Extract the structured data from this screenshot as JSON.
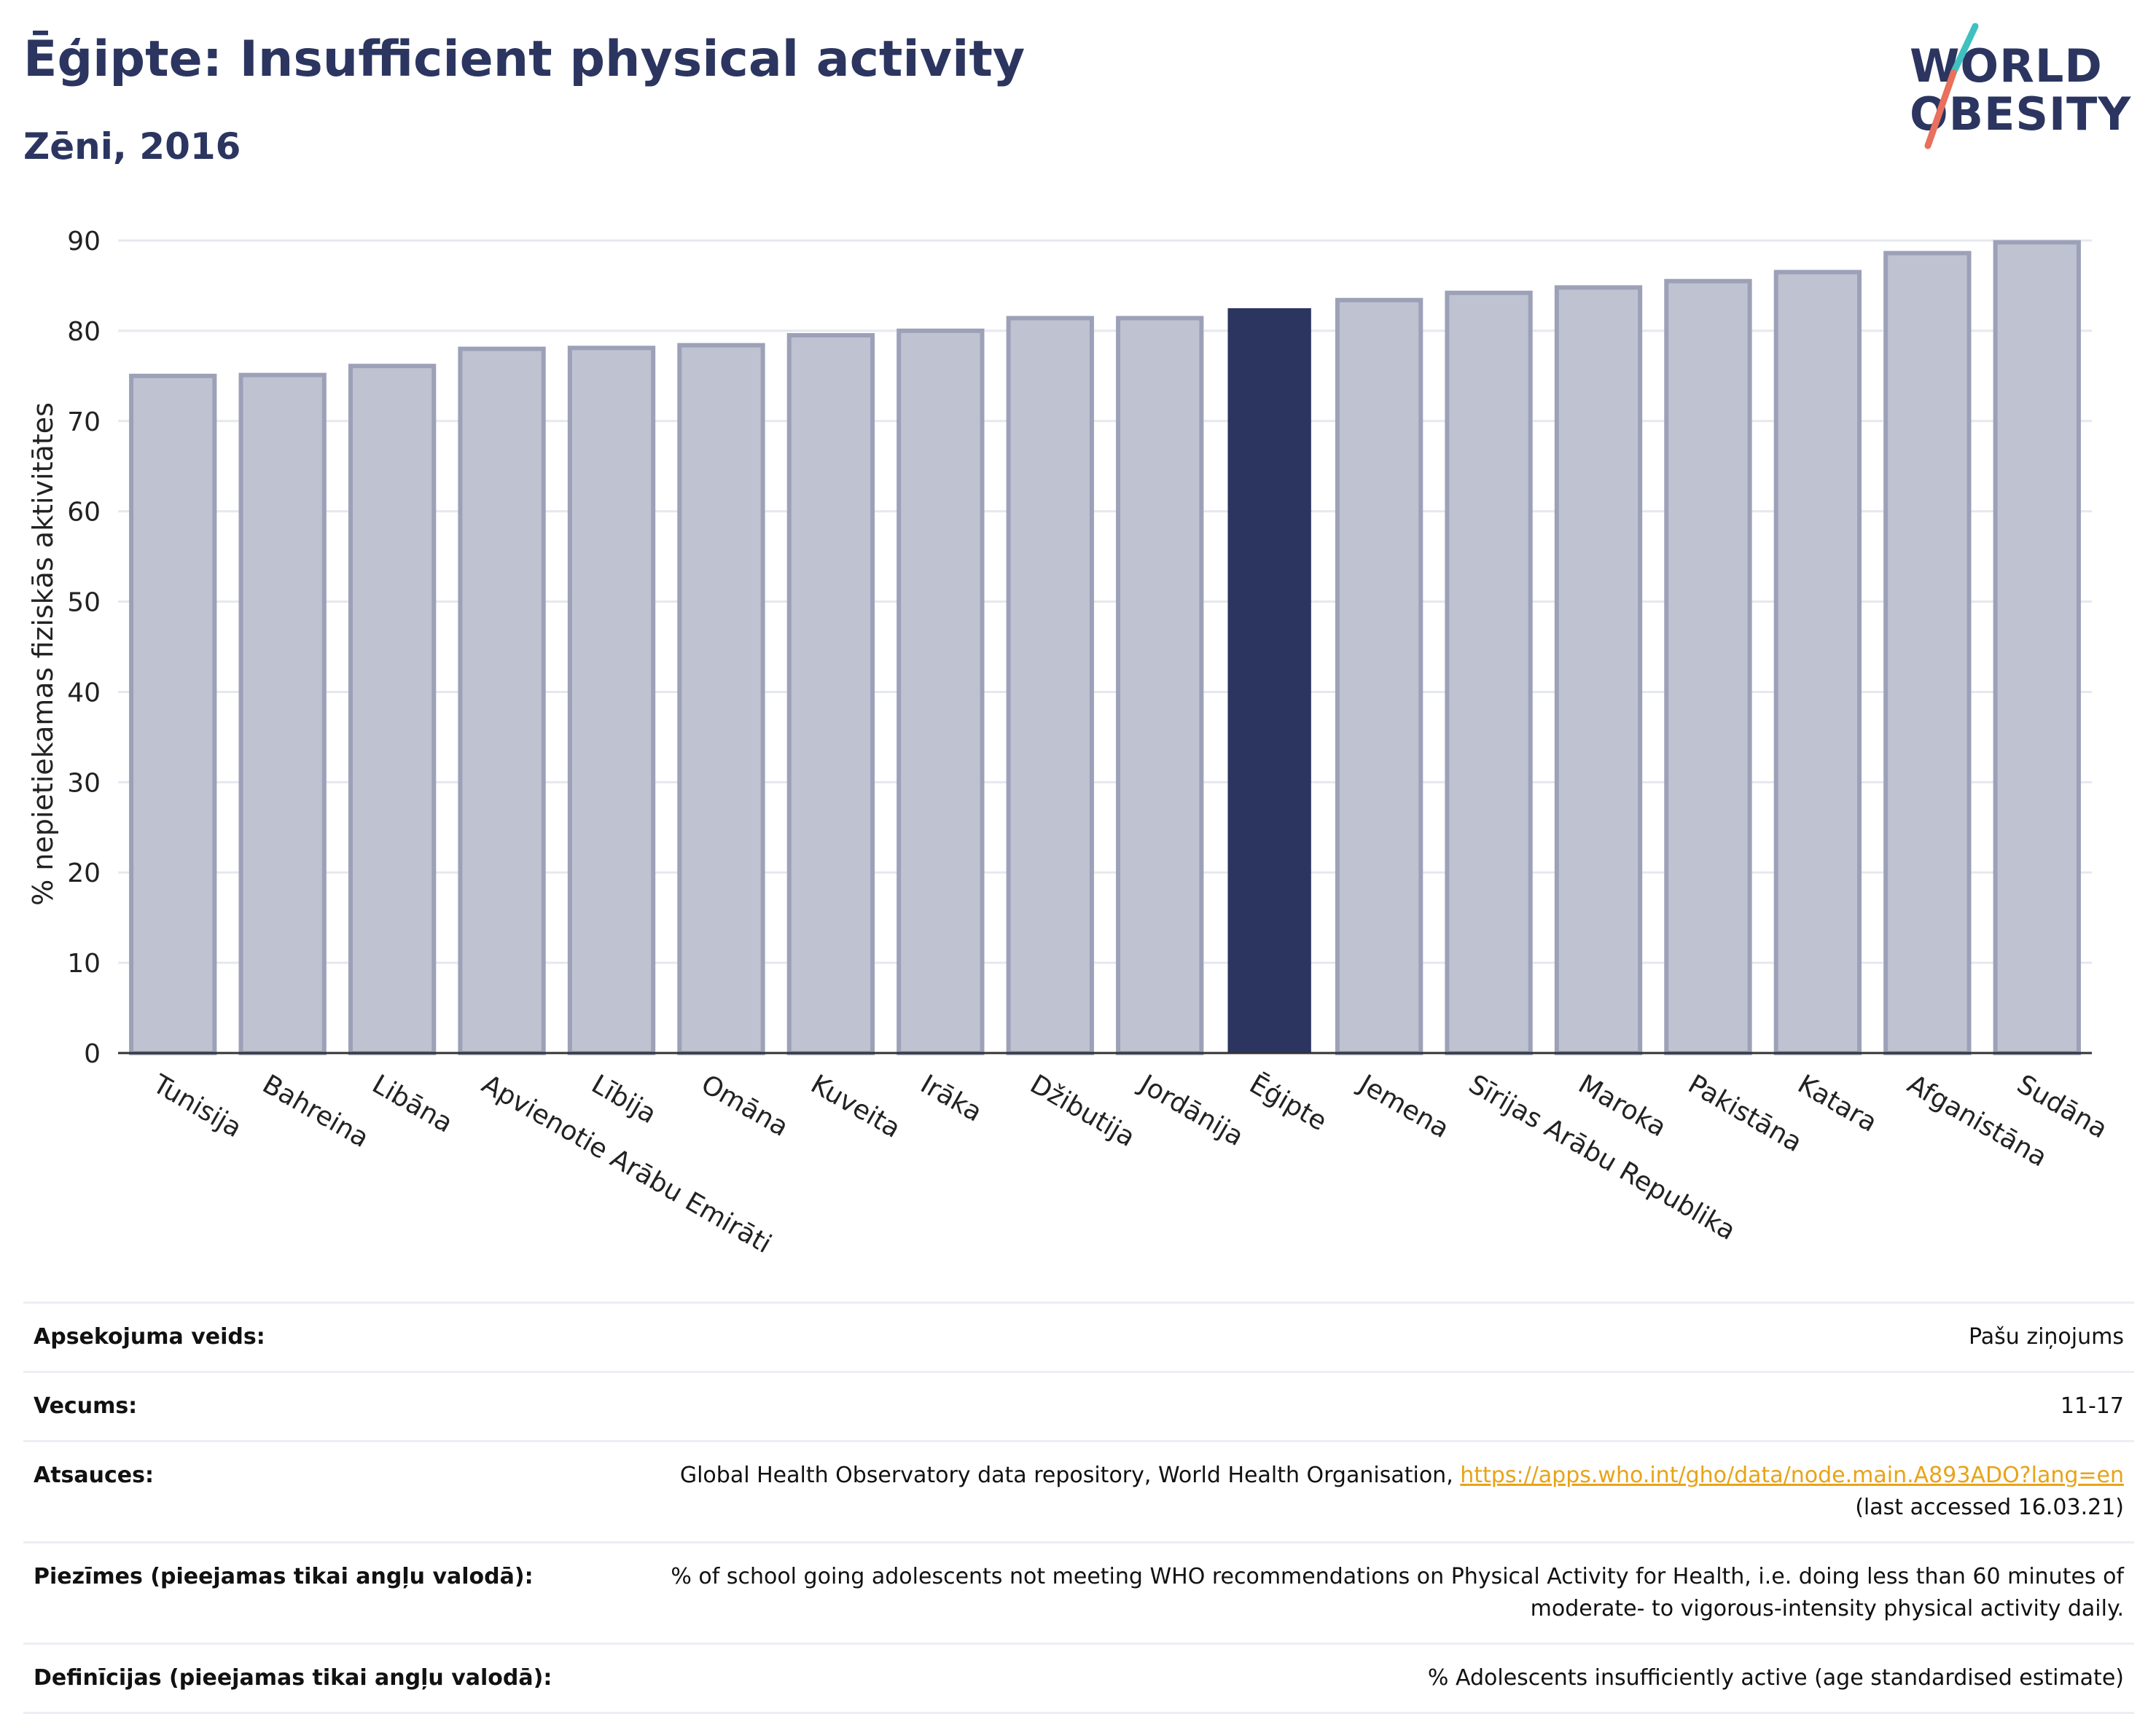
{
  "header": {
    "title": "Ēģipte: Insufficient physical activity",
    "subtitle": "Zēni, 2016"
  },
  "logo": {
    "line1": "WORLD",
    "line2": "OBESITY",
    "colors": {
      "text": "#2b3560",
      "slash_top": "#3fc1c0",
      "slash_bottom": "#e8705c"
    }
  },
  "colors": {
    "bar_default": "#bfc2d0",
    "bar_default_border": "#9ca1b8",
    "bar_highlight": "#2b3560",
    "grid": "#e6e8ef",
    "axis": "#333333",
    "link": "#e8a317"
  },
  "chart_data": {
    "type": "bar",
    "title": "",
    "xlabel": "",
    "ylabel": "% nepietiekamas fiziskās aktivitātes",
    "ylim": [
      0,
      90
    ],
    "yticks": [
      0,
      10,
      20,
      30,
      40,
      50,
      60,
      70,
      80,
      90
    ],
    "grid": true,
    "highlight": "Ēģipte",
    "categories": [
      "Tunisija",
      "Bahreina",
      "Libāna",
      "Apvienotie Arābu Emirāti",
      "Lībija",
      "Omāna",
      "Kuveita",
      "Irāka",
      "Džibutija",
      "Jordānija",
      "Ēģipte",
      "Jemena",
      "Sīrijas Arābu Republika",
      "Maroka",
      "Pakistāna",
      "Katara",
      "Afganistāna",
      "Sudāna"
    ],
    "values": [
      75.0,
      75.1,
      76.1,
      78.0,
      78.1,
      78.4,
      79.5,
      80.0,
      81.4,
      81.4,
      82.5,
      83.4,
      84.2,
      84.8,
      85.5,
      86.5,
      88.6,
      89.8
    ]
  },
  "info": {
    "rows": [
      {
        "label": "Apsekojuma veids:",
        "value": "Pašu ziņojums"
      },
      {
        "label": "Vecums:",
        "value": "11-17"
      },
      {
        "label": "Atsauces:",
        "value": "Global Health Observatory data repository, World Health Organisation, ",
        "link": "https://apps.who.int/gho/data/node.main.A893ADO?lang=en",
        "value2": "(last accessed 16.03.21)"
      },
      {
        "label": "Piezīmes (pieejamas tikai angļu valodā):",
        "value": "% of school going adolescents not meeting WHO recommendations on Physical Activity for Health, i.e. doing less than 60 minutes of",
        "value2": "moderate- to vigorous-intensity physical activity daily."
      },
      {
        "label": "Definīcijas (pieejamas tikai angļu valodā):",
        "value": "% Adolescents insufficiently active (age standardised estimate)"
      }
    ]
  }
}
